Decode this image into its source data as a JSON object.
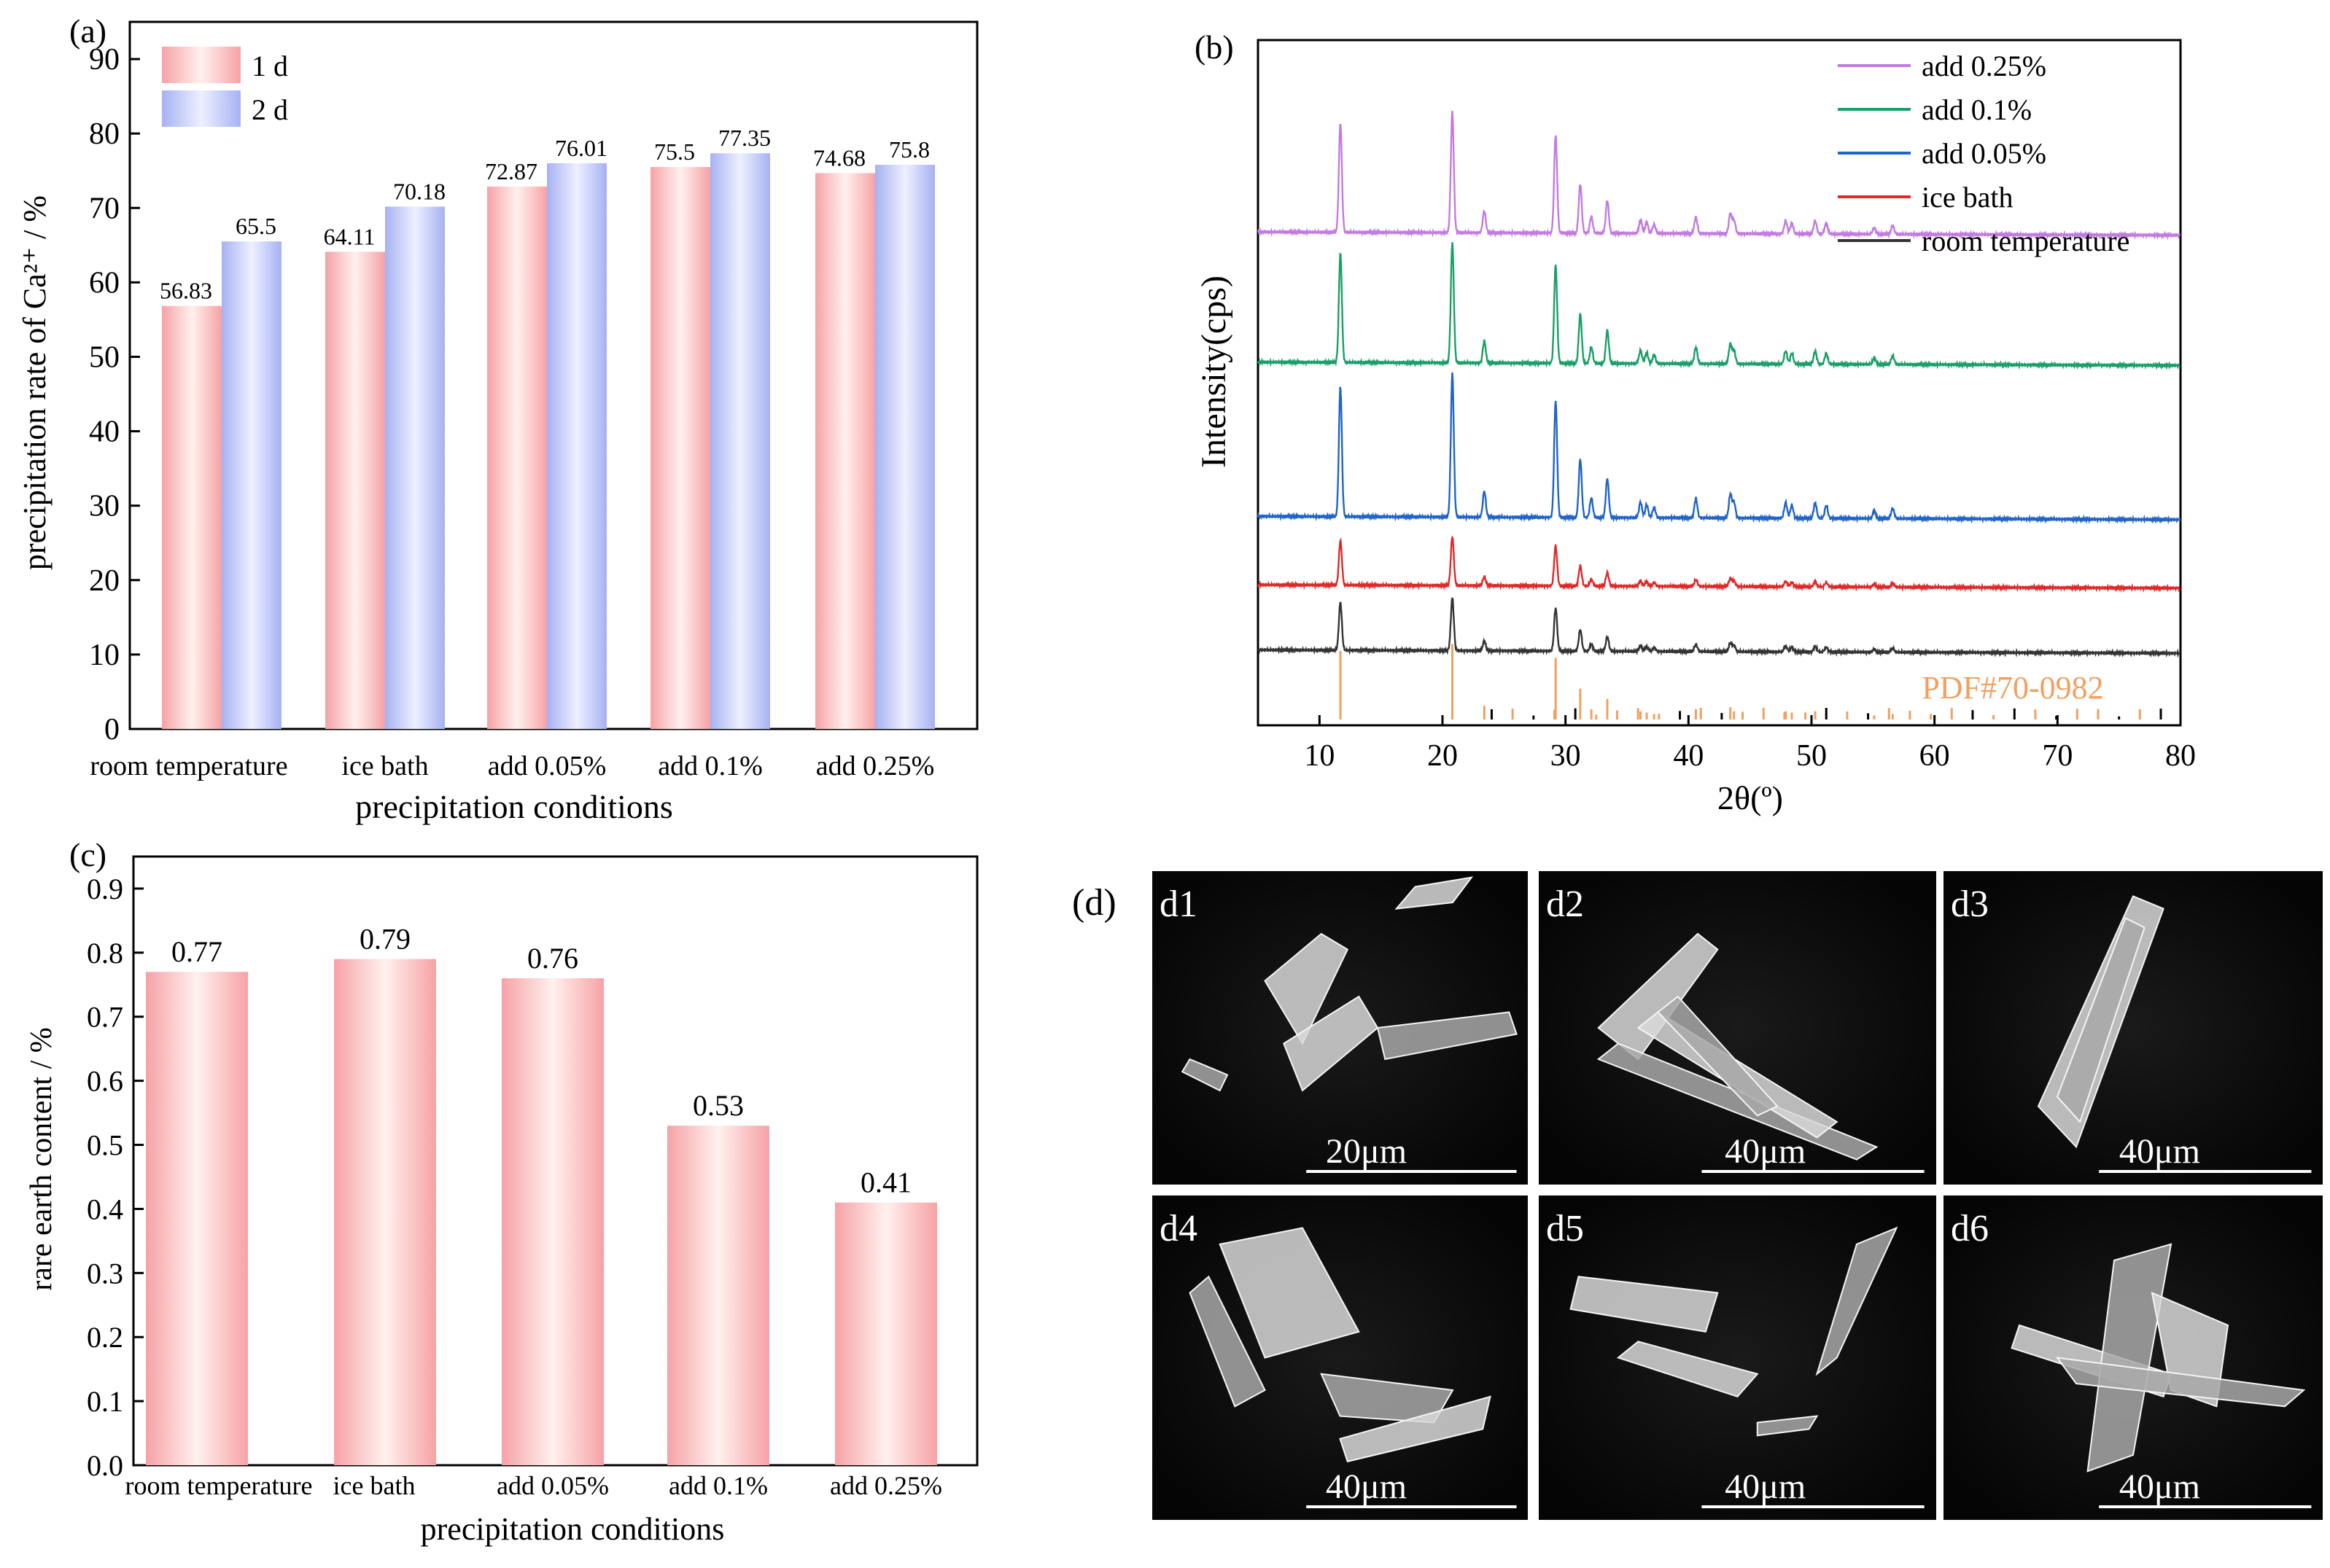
{
  "chart_data": [
    {
      "panel": "(a)",
      "type": "bar",
      "xlabel": "precipitation conditions",
      "ylabel": "precipitation rate of Ca²⁺ / %",
      "ylim": [
        0,
        95
      ],
      "yticks": [
        0,
        10,
        20,
        30,
        40,
        50,
        60,
        70,
        80,
        90
      ],
      "categories": [
        "room temperature",
        "ice bath",
        "add 0.05%",
        "add 0.1%",
        "add 0.25%"
      ],
      "series": [
        {
          "name": "1 d",
          "values": [
            56.83,
            64.11,
            72.87,
            75.5,
            74.68
          ],
          "labels": [
            "56.83",
            "64.11",
            "72.87",
            "75.5",
            "74.68"
          ],
          "color": "#f8a8ac"
        },
        {
          "name": "2 d",
          "values": [
            65.5,
            70.18,
            76.01,
            77.35,
            75.8
          ],
          "labels": [
            "65.5",
            "70.18",
            "76.01",
            "77.35",
            "75.8"
          ],
          "color": "#a8b4f4"
        }
      ],
      "legend_position": "top-left"
    },
    {
      "panel": "(b)",
      "type": "line",
      "xlabel": "2θ(º)",
      "ylabel": "Intensity(cps)",
      "xlim": [
        5,
        80
      ],
      "xticks": [
        10,
        20,
        30,
        40,
        50,
        60,
        70,
        80
      ],
      "reference_label": "PDF#70-0982",
      "reference_color": "#f0a060",
      "peaks_2theta": [
        11.7,
        20.8,
        23.4,
        29.2,
        31.2,
        32.1,
        33.4,
        36.1,
        36.6,
        37.2,
        40.6,
        43.4,
        43.7,
        47.9,
        48.4,
        50.3,
        51.2,
        55.1,
        56.6
      ],
      "peak_heights": [
        1.0,
        1.1,
        0.2,
        0.9,
        0.45,
        0.15,
        0.3,
        0.12,
        0.1,
        0.08,
        0.15,
        0.18,
        0.12,
        0.12,
        0.1,
        0.12,
        0.1,
        0.06,
        0.08
      ],
      "series": [
        {
          "name": "add 0.25%",
          "color": "#c27be0",
          "offset": 0.72,
          "scale": 0.16
        },
        {
          "name": "add 0.1%",
          "color": "#1a9e6a",
          "offset": 0.53,
          "scale": 0.16
        },
        {
          "name": "add 0.05%",
          "color": "#1f64c8",
          "offset": 0.305,
          "scale": 0.19
        },
        {
          "name": "ice bath",
          "color": "#e02828",
          "offset": 0.205,
          "scale": 0.065
        },
        {
          "name": "room temperature",
          "color": "#333333",
          "offset": 0.11,
          "scale": 0.07
        }
      ],
      "legend_order": [
        "add 0.25%",
        "add 0.1%",
        "add 0.05%",
        "ice bath",
        "room temperature"
      ]
    },
    {
      "panel": "(c)",
      "type": "bar",
      "xlabel": "precipitation conditions",
      "ylabel": "rare earth content / %",
      "ylim": [
        0,
        0.95
      ],
      "yticks": [
        "0.0",
        "0.1",
        "0.2",
        "0.3",
        "0.4",
        "0.5",
        "0.6",
        "0.7",
        "0.8",
        "0.9"
      ],
      "categories": [
        "room temperature",
        "ice bath",
        "add 0.05%",
        "add 0.1%",
        "add 0.25%"
      ],
      "values": [
        0.77,
        0.79,
        0.76,
        0.53,
        0.41
      ],
      "labels": [
        "0.77",
        "0.79",
        "0.76",
        "0.53",
        "0.41"
      ],
      "color": "#f8a8ac"
    }
  ],
  "sem": {
    "label": "(d)",
    "images": [
      {
        "id": "d1",
        "scale": "20μm"
      },
      {
        "id": "d2",
        "scale": "40μm"
      },
      {
        "id": "d3",
        "scale": "40μm"
      },
      {
        "id": "d4",
        "scale": "40μm"
      },
      {
        "id": "d5",
        "scale": "40μm"
      },
      {
        "id": "d6",
        "scale": "40μm"
      }
    ]
  }
}
